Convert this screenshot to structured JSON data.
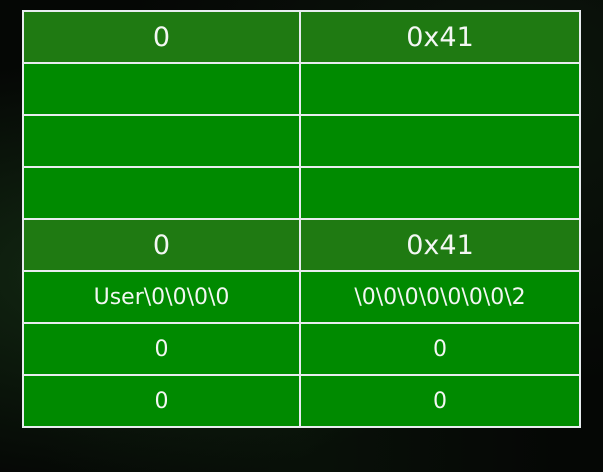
{
  "table": {
    "rows": [
      {
        "left": "0",
        "right": "0x41",
        "shade": "dark",
        "size": "tall"
      },
      {
        "left": "",
        "right": "",
        "shade": "bright",
        "size": "tall"
      },
      {
        "left": "",
        "right": "",
        "shade": "bright",
        "size": "tall"
      },
      {
        "left": "",
        "right": "",
        "shade": "bright",
        "size": "tall"
      },
      {
        "left": "0",
        "right": "0x41",
        "shade": "dark",
        "size": "tall"
      },
      {
        "left": "User\\0\\0\\0\\0",
        "right": "\\0\\0\\0\\0\\0\\0\\0\\2",
        "shade": "bright",
        "size": "short"
      },
      {
        "left": "0",
        "right": "0",
        "shade": "bright",
        "size": "short"
      },
      {
        "left": "0",
        "right": "0",
        "shade": "bright",
        "size": "short"
      }
    ]
  },
  "colors": {
    "header_row_green": "#1f7a12",
    "cell_green": "#008a00",
    "border": "#e8ecef",
    "background": "#050705"
  }
}
